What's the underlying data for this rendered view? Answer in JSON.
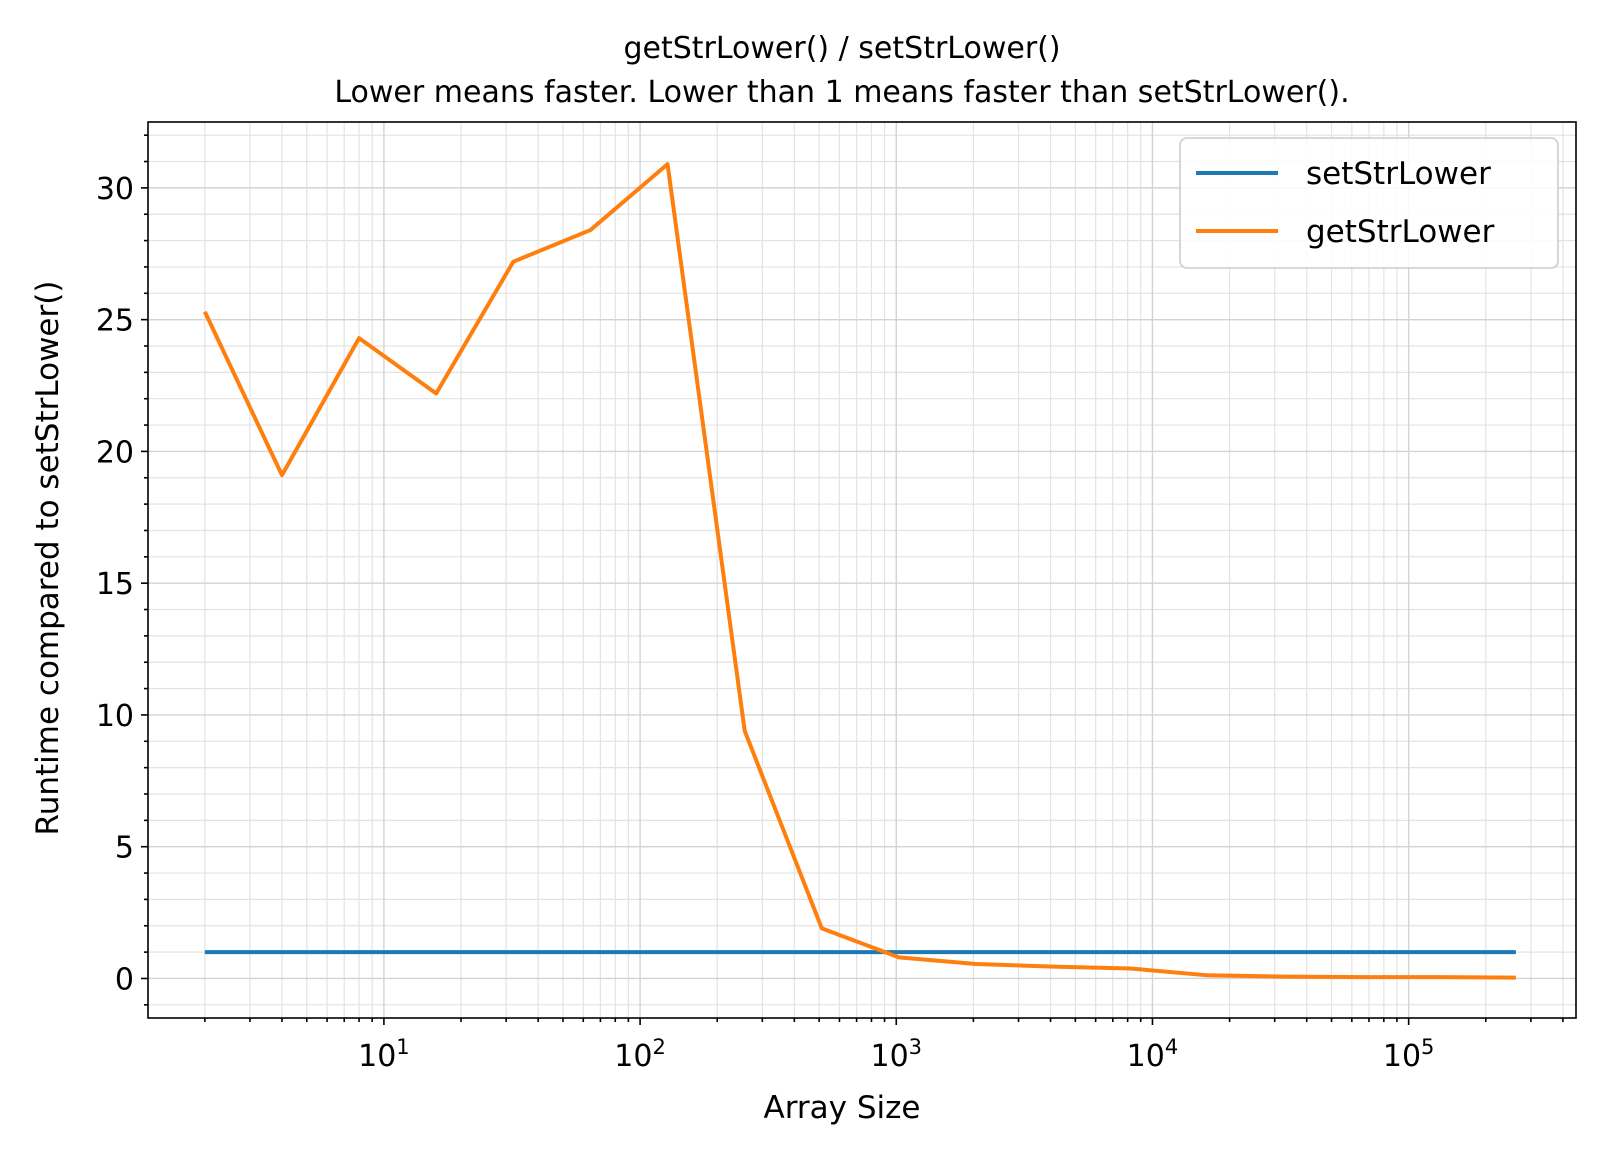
{
  "chart_data": {
    "type": "line",
    "title": "getStrLower() / setStrLower()",
    "subtitle": "Lower means faster. Lower than 1 means faster than setStrLower().",
    "xlabel": "Array Size",
    "ylabel": "Runtime compared to setStrLower()",
    "xscale": "log",
    "xlim": [
      1.2,
      450000
    ],
    "ylim": [
      -1.5,
      32.5
    ],
    "yticks": [
      0,
      5,
      10,
      15,
      20,
      25,
      30
    ],
    "xticks": [
      {
        "value": 10,
        "base": "10",
        "exp": "1"
      },
      {
        "value": 100,
        "base": "10",
        "exp": "2"
      },
      {
        "value": 1000,
        "base": "10",
        "exp": "3"
      },
      {
        "value": 10000,
        "base": "10",
        "exp": "4"
      },
      {
        "value": 100000,
        "base": "10",
        "exp": "5"
      }
    ],
    "grid": true,
    "legend_position": "top-right",
    "x": [
      2,
      4,
      8,
      16,
      32,
      64,
      128,
      256,
      512,
      1024,
      2048,
      4096,
      8192,
      16384,
      32768,
      65536,
      131072,
      262144
    ],
    "series": [
      {
        "name": "setStrLower",
        "color": "#1f77b4",
        "values": [
          1,
          1,
          1,
          1,
          1,
          1,
          1,
          1,
          1,
          1,
          1,
          1,
          1,
          1,
          1,
          1,
          1,
          1
        ]
      },
      {
        "name": "getStrLower",
        "color": "#ff7f0e",
        "values": [
          25.3,
          19.1,
          24.3,
          22.2,
          27.2,
          28.4,
          30.9,
          9.4,
          1.9,
          0.8,
          0.55,
          0.45,
          0.38,
          0.12,
          0.07,
          0.05,
          0.05,
          0.03
        ]
      }
    ]
  }
}
